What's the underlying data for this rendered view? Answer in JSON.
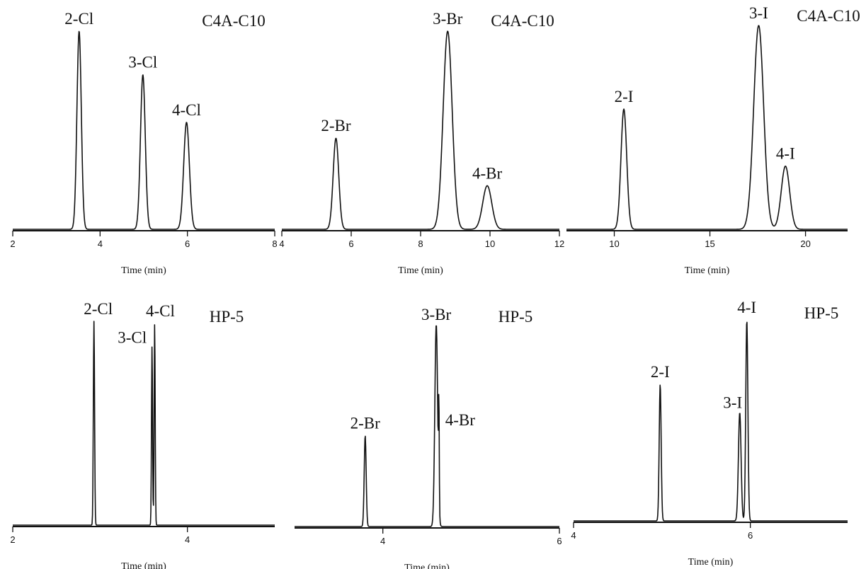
{
  "chart_data": [
    {
      "type": "line",
      "column": "C4A-C10",
      "xlabel": "Time (min)",
      "xlim": [
        2,
        8
      ],
      "xticks": [
        2,
        4,
        6,
        8
      ],
      "peaks": [
        {
          "label": "2-Cl",
          "time": 3.52,
          "height": 1.0,
          "width": 0.05
        },
        {
          "label": "3-Cl",
          "time": 4.98,
          "height": 0.78,
          "width": 0.055
        },
        {
          "label": "4-Cl",
          "time": 5.98,
          "height": 0.54,
          "width": 0.065
        }
      ]
    },
    {
      "type": "line",
      "column": "C4A-C10",
      "xlabel": "Time (min)",
      "xlim": [
        4,
        12
      ],
      "xticks": [
        4,
        6,
        8,
        10,
        12
      ],
      "peaks": [
        {
          "label": "2-Br",
          "time": 5.56,
          "height": 0.46,
          "width": 0.08
        },
        {
          "label": "3-Br",
          "time": 8.78,
          "height": 1.0,
          "width": 0.13
        },
        {
          "label": "4-Br",
          "time": 9.92,
          "height": 0.22,
          "width": 0.13
        }
      ]
    },
    {
      "type": "line",
      "column": "C4A-C10",
      "xlabel": "Time (min)",
      "xlim": [
        7.5,
        22.2
      ],
      "xticks": [
        10,
        15,
        20
      ],
      "peaks": [
        {
          "label": "2-I",
          "time": 10.5,
          "height": 0.59,
          "width": 0.15
        },
        {
          "label": "3-I",
          "time": 17.55,
          "height": 1.0,
          "width": 0.26
        },
        {
          "label": "4-I",
          "time": 18.95,
          "height": 0.31,
          "width": 0.22
        }
      ]
    },
    {
      "type": "line",
      "column": "HP-5",
      "xlabel": "Time (min)",
      "xlim": [
        2,
        5
      ],
      "xticks": [
        2,
        4
      ],
      "peaks": [
        {
          "label": "2-Cl",
          "time": 2.93,
          "height": 1.0,
          "width": 0.007
        },
        {
          "label": "3-Cl",
          "time": 3.595,
          "height": 0.88,
          "width": 0.006
        },
        {
          "label": "4-Cl",
          "time": 3.625,
          "height": 0.99,
          "width": 0.006
        }
      ]
    },
    {
      "type": "line",
      "column": "HP-5",
      "xlabel": "Time (min)",
      "xlim": [
        3,
        6
      ],
      "xticks": [
        4,
        6
      ],
      "peaks": [
        {
          "label": "2-Br",
          "time": 3.8,
          "height": 0.45,
          "width": 0.011
        },
        {
          "label": "3-Br",
          "time": 4.605,
          "height": 1.0,
          "width": 0.016
        },
        {
          "label": "4-Br",
          "time": 4.635,
          "height": 0.5,
          "width": 0.004
        }
      ]
    },
    {
      "type": "line",
      "column": "HP-5",
      "xlabel": "Time (min)",
      "xlim": [
        4,
        7.1
      ],
      "xticks": [
        4,
        6
      ],
      "peaks": [
        {
          "label": "2-I",
          "time": 4.98,
          "height": 0.68,
          "width": 0.011
        },
        {
          "label": "3-I",
          "time": 5.88,
          "height": 0.54,
          "width": 0.015
        },
        {
          "label": "4-I",
          "time": 5.96,
          "height": 1.0,
          "width": 0.012
        }
      ]
    }
  ]
}
